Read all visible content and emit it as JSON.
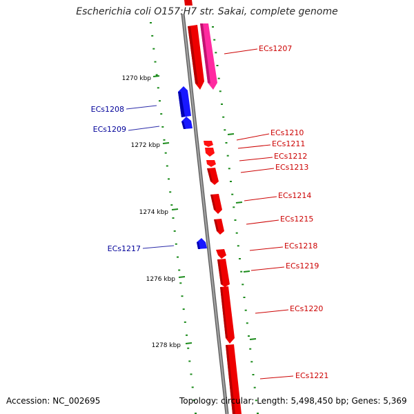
{
  "title": "Escherichia coli O157:H7 str. Sakai, complete genome",
  "footer": {
    "accession": "Accession: NC_002695",
    "stats": "Topology: circular; Length: 5,498,450 bp; Genes: 5,369"
  },
  "colors": {
    "forward_gene": "#ff0000",
    "forward_gene_alt": "#ff2aa0",
    "reverse_gene": "#0000ff",
    "backbone": "#8a8a8a",
    "ticks": "#1a8a1a",
    "label_forward": "#cc0000",
    "label_reverse": "#000099"
  },
  "kbp_ticks": [
    "1270 kbp",
    "1272 kbp",
    "1274 kbp",
    "1276 kbp",
    "1278 kbp"
  ],
  "gene_labels": {
    "reverse": [
      "ECs1208",
      "ECs1209",
      "ECs1217"
    ],
    "forward": [
      "ECs1207",
      "ECs1210",
      "ECs1211",
      "ECs1212",
      "ECs1213",
      "ECs1214",
      "ECs1215",
      "ECs1218",
      "ECs1219",
      "ECs1220",
      "ECs1221"
    ]
  }
}
